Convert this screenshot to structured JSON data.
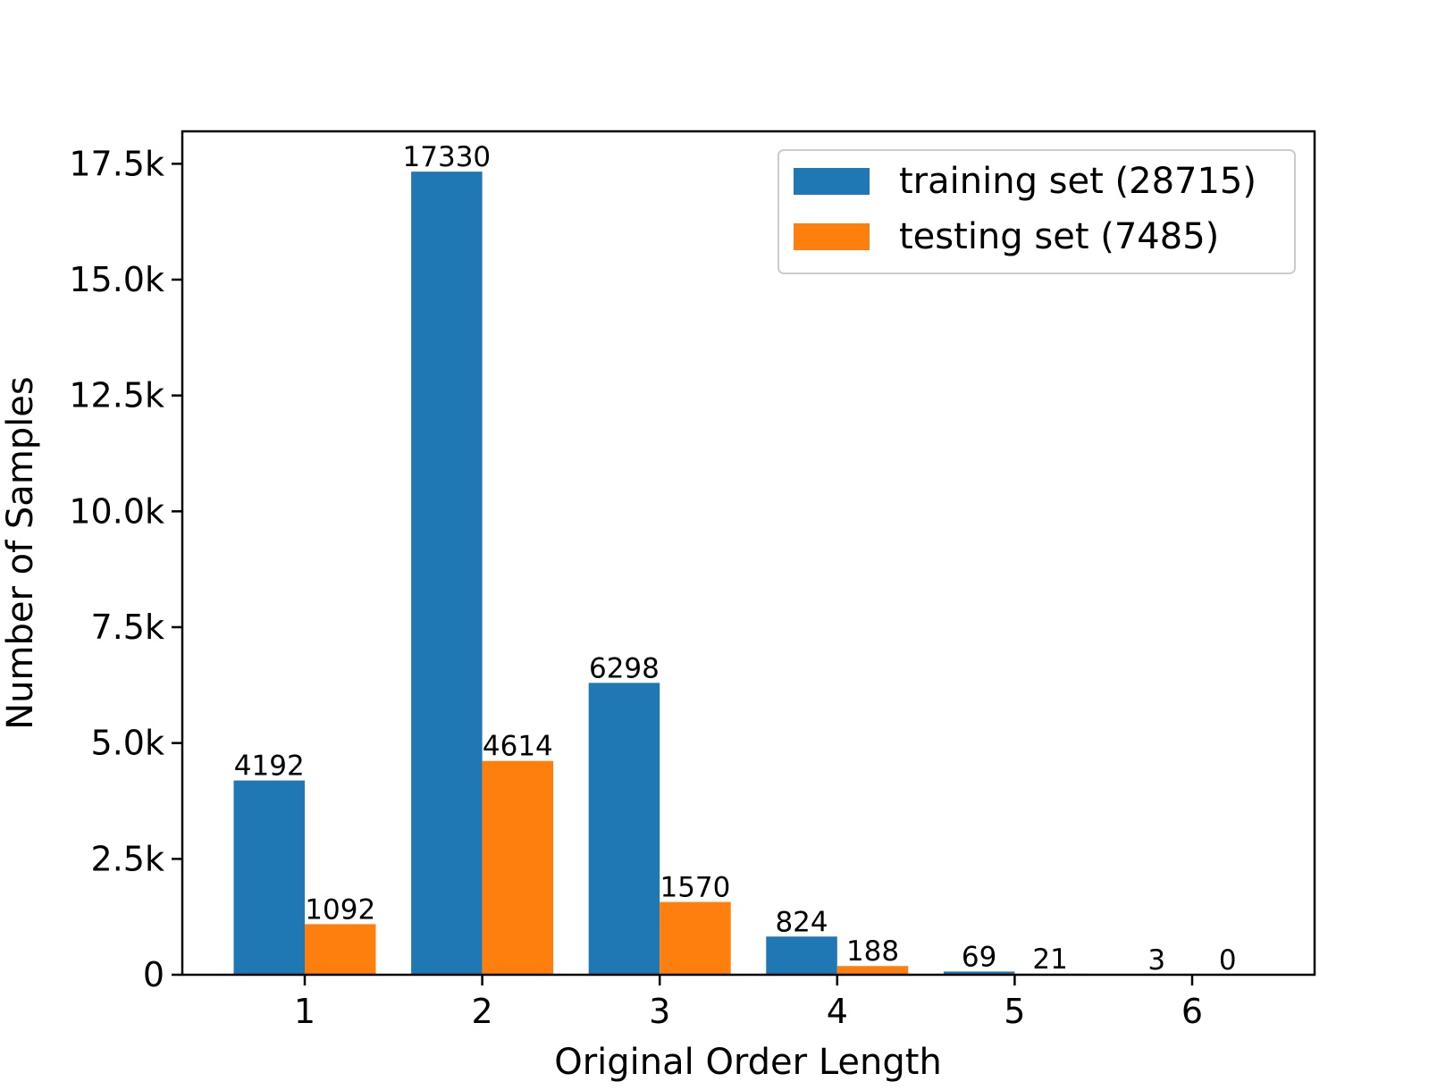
{
  "chart_data": {
    "type": "bar",
    "title": "",
    "xlabel": "Original Order Length",
    "ylabel": "Number of Samples",
    "categories": [
      "1",
      "2",
      "3",
      "4",
      "5",
      "6"
    ],
    "series": [
      {
        "name": "training set (28715)",
        "color": "#1f77b4",
        "values": [
          4192,
          17330,
          6298,
          824,
          69,
          3
        ],
        "labels": [
          "4192",
          "17330",
          "6298",
          "824",
          "69",
          "3"
        ]
      },
      {
        "name": "testing set (7485)",
        "color": "#ff7f0e",
        "values": [
          1092,
          4614,
          1570,
          188,
          21,
          0
        ],
        "labels": [
          "1092",
          "4614",
          "1570",
          "188",
          "21",
          "0"
        ]
      }
    ],
    "ylim": [
      0,
      18200
    ],
    "yticks": [
      0,
      2500,
      5000,
      7500,
      10000,
      12500,
      15000,
      17500
    ],
    "ytick_labels": [
      "0",
      "2.5k",
      "5.0k",
      "7.5k",
      "10.0k",
      "12.5k",
      "15.0k",
      "17.5k"
    ],
    "grid": false,
    "legend": "top-right"
  }
}
